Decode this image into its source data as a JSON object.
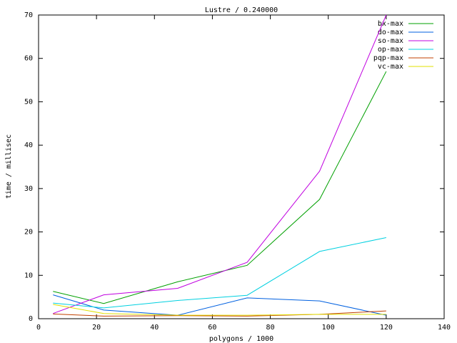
{
  "chart_data": {
    "type": "line",
    "title": "Lustre / 0.240000",
    "x_label": "polygons / 1000",
    "y_label": "time / millisec",
    "x": [
      5,
      22.5,
      48,
      72,
      97,
      120
    ],
    "series": [
      {
        "name": "bx-max",
        "color": "#00a000",
        "values": [
          6.3,
          3.5,
          8.5,
          12.3,
          27.5,
          57
        ]
      },
      {
        "name": "do-max",
        "color": "#0060e0",
        "values": [
          5.5,
          2,
          0.8,
          4.8,
          4.1,
          0.8
        ]
      },
      {
        "name": "so-max",
        "color": "#c000e0",
        "values": [
          1.2,
          5.5,
          7,
          13,
          34,
          70
        ]
      },
      {
        "name": "op-max",
        "color": "#00d0e0",
        "values": [
          3.6,
          2.5,
          4.2,
          5.4,
          15.5,
          18.7
        ]
      },
      {
        "name": "pqp-max",
        "color": "#c04000",
        "values": [
          1.1,
          0.6,
          0.7,
          0.6,
          1,
          1.8
        ]
      },
      {
        "name": "vc-max",
        "color": "#e0e000",
        "values": [
          3.3,
          1.2,
          0.8,
          0.8,
          1,
          1
        ]
      }
    ],
    "xlim": [
      0,
      140
    ],
    "xticks": [
      0,
      20,
      40,
      60,
      80,
      100,
      120,
      140
    ],
    "ylim": [
      0,
      70
    ],
    "yticks": [
      0,
      10,
      20,
      30,
      40,
      50,
      60,
      70
    ],
    "legend": "top-right"
  }
}
